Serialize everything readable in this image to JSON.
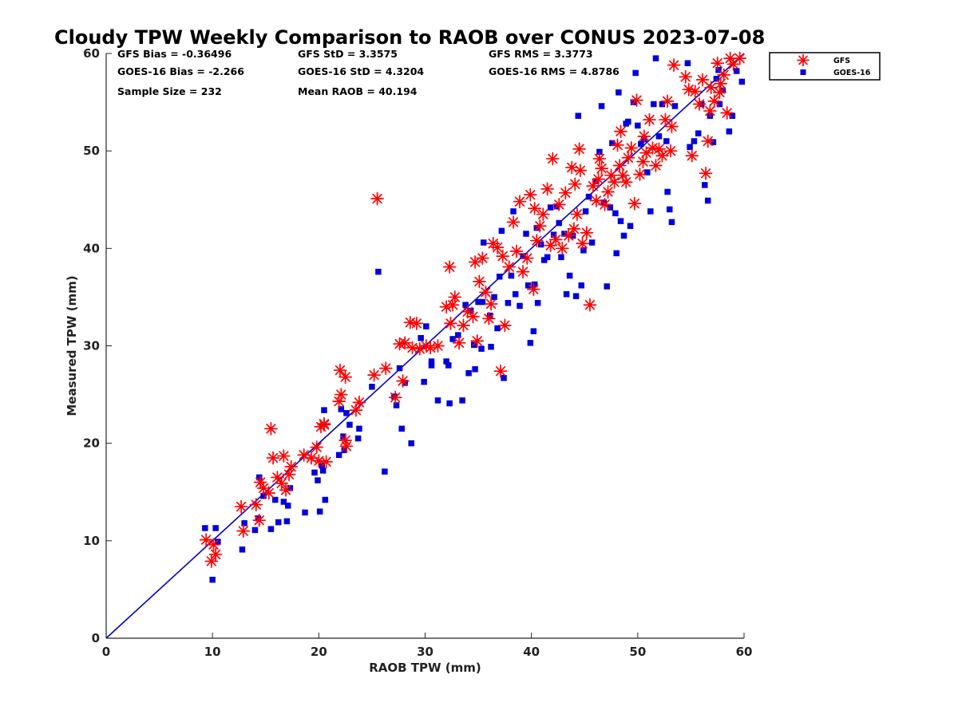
{
  "chart_data": {
    "type": "scatter",
    "title": "Cloudy TPW Weekly Comparison to RAOB over CONUS 2023-07-08",
    "xlabel": "RAOB TPW (mm)",
    "ylabel": "Measured TPW (mm)",
    "xlim": [
      0,
      60
    ],
    "ylim": [
      0,
      60
    ],
    "xticks": [
      "0",
      "10",
      "20",
      "30",
      "40",
      "50",
      "60"
    ],
    "yticks": [
      "0",
      "10",
      "20",
      "30",
      "40",
      "50",
      "60"
    ],
    "grid": false,
    "legend_position": "outside-top-right",
    "reference_line": {
      "from": [
        0,
        0
      ],
      "to": [
        60,
        60
      ],
      "color": "#0000cc"
    },
    "stats": {
      "gfs_bias": "GFS Bias = -0.36496",
      "goes_bias": "GOES-16 Bias = -2.266",
      "sample_size": "Sample Size = 232",
      "gfs_std": "GFS StD = 3.3575",
      "goes_std": "GOES-16 StD = 4.3204",
      "mean_raob": "Mean RAOB = 40.194",
      "gfs_rms": "GFS RMS = 3.3773",
      "goes_rms": "GOES-16 RMS = 4.8786"
    },
    "series": [
      {
        "name": "GFS",
        "marker": "asterisk",
        "color": "#ff0000",
        "points": [
          [
            9.4,
            10.1
          ],
          [
            9.9,
            7.9
          ],
          [
            10.3,
            8.6
          ],
          [
            10.1,
            9.6
          ],
          [
            12.7,
            13.5
          ],
          [
            12.9,
            11.0
          ],
          [
            14.1,
            13.7
          ],
          [
            14.4,
            12.1
          ],
          [
            14.5,
            16.0
          ],
          [
            14.8,
            15.4
          ],
          [
            15.3,
            14.9
          ],
          [
            15.5,
            21.5
          ],
          [
            15.7,
            18.5
          ],
          [
            16.1,
            16.5
          ],
          [
            16.5,
            15.9
          ],
          [
            16.7,
            18.7
          ],
          [
            16.9,
            15.2
          ],
          [
            17.2,
            16.8
          ],
          [
            17.4,
            17.6
          ],
          [
            18.6,
            18.8
          ],
          [
            19.3,
            18.5
          ],
          [
            19.8,
            19.6
          ],
          [
            20.0,
            18.2
          ],
          [
            20.2,
            21.7
          ],
          [
            20.5,
            21.9
          ],
          [
            20.7,
            18.1
          ],
          [
            20.5,
            22.0
          ],
          [
            21.9,
            24.3
          ],
          [
            22.1,
            25.0
          ],
          [
            22.0,
            27.5
          ],
          [
            22.5,
            26.8
          ],
          [
            22.6,
            19.7
          ],
          [
            22.5,
            20.3
          ],
          [
            23.5,
            23.4
          ],
          [
            23.8,
            24.2
          ],
          [
            25.2,
            27.0
          ],
          [
            25.5,
            45.1
          ],
          [
            26.3,
            27.7
          ],
          [
            27.2,
            24.7
          ],
          [
            27.6,
            30.2
          ],
          [
            27.9,
            26.4
          ],
          [
            28.1,
            30.3
          ],
          [
            28.6,
            32.4
          ],
          [
            28.8,
            29.8
          ],
          [
            29.2,
            32.3
          ],
          [
            29.5,
            29.7
          ],
          [
            30.1,
            30.0
          ],
          [
            30.5,
            29.8
          ],
          [
            31.2,
            30.0
          ],
          [
            32.0,
            34.0
          ],
          [
            32.3,
            38.1
          ],
          [
            32.6,
            34.2
          ],
          [
            32.8,
            35.0
          ],
          [
            32.4,
            32.3
          ],
          [
            33.2,
            30.3
          ],
          [
            33.6,
            32.1
          ],
          [
            34.0,
            33.5
          ],
          [
            34.5,
            33.0
          ],
          [
            34.9,
            30.5
          ],
          [
            34.7,
            38.6
          ],
          [
            35.1,
            36.6
          ],
          [
            35.4,
            39.0
          ],
          [
            35.7,
            35.5
          ],
          [
            36.0,
            32.8
          ],
          [
            36.2,
            34.3
          ],
          [
            36.4,
            40.5
          ],
          [
            36.8,
            40.1
          ],
          [
            37.1,
            27.4
          ],
          [
            37.5,
            32.1
          ],
          [
            37.3,
            39.2
          ],
          [
            37.9,
            38.1
          ],
          [
            38.3,
            42.7
          ],
          [
            38.6,
            39.7
          ],
          [
            38.9,
            44.8
          ],
          [
            39.2,
            37.6
          ],
          [
            39.6,
            39.0
          ],
          [
            39.9,
            45.5
          ],
          [
            40.2,
            35.8
          ],
          [
            40.5,
            40.8
          ],
          [
            40.3,
            44.1
          ],
          [
            40.8,
            42.3
          ],
          [
            41.1,
            43.5
          ],
          [
            41.5,
            46.1
          ],
          [
            41.8,
            40.3
          ],
          [
            42.0,
            49.2
          ],
          [
            42.3,
            40.9
          ],
          [
            42.6,
            44.5
          ],
          [
            42.9,
            40.0
          ],
          [
            43.2,
            45.7
          ],
          [
            43.5,
            41.3
          ],
          [
            43.8,
            48.3
          ],
          [
            44.0,
            42.0
          ],
          [
            44.3,
            43.5
          ],
          [
            44.5,
            50.2
          ],
          [
            44.8,
            40.5
          ],
          [
            44.6,
            48.0
          ],
          [
            45.2,
            41.6
          ],
          [
            45.5,
            34.2
          ],
          [
            45.8,
            46.4
          ],
          [
            46.1,
            44.9
          ],
          [
            46.3,
            47.1
          ],
          [
            46.6,
            48.2
          ],
          [
            46.9,
            44.5
          ],
          [
            47.2,
            45.8
          ],
          [
            47.5,
            47.5
          ],
          [
            47.8,
            46.8
          ],
          [
            48.1,
            50.6
          ],
          [
            48.3,
            48.5
          ],
          [
            48.6,
            47.5
          ],
          [
            48.9,
            46.8
          ],
          [
            49.1,
            49.3
          ],
          [
            49.4,
            50.3
          ],
          [
            49.7,
            44.6
          ],
          [
            49.9,
            55.2
          ],
          [
            50.2,
            47.6
          ],
          [
            50.5,
            48.9
          ],
          [
            50.8,
            49.8
          ],
          [
            51.1,
            53.2
          ],
          [
            51.4,
            50.3
          ],
          [
            51.7,
            48.5
          ],
          [
            52.0,
            50.2
          ],
          [
            52.3,
            49.5
          ],
          [
            52.6,
            53.2
          ],
          [
            52.8,
            55.1
          ],
          [
            53.1,
            50.0
          ],
          [
            53.4,
            58.8
          ],
          [
            54.8,
            56.3
          ],
          [
            55.1,
            49.5
          ],
          [
            55.4,
            56.1
          ],
          [
            55.8,
            54.8
          ],
          [
            56.1,
            57.3
          ],
          [
            56.4,
            47.7
          ],
          [
            56.6,
            51.0
          ],
          [
            56.9,
            56.5
          ],
          [
            57.2,
            55.1
          ],
          [
            57.5,
            59.0
          ],
          [
            57.8,
            56.9
          ],
          [
            58.1,
            57.8
          ],
          [
            58.4,
            53.9
          ],
          [
            58.7,
            59.5
          ],
          [
            59.0,
            58.9
          ],
          [
            59.6,
            59.5
          ],
          [
            54.5,
            57.6
          ],
          [
            56.8,
            54.1
          ],
          [
            57.7,
            56.0
          ],
          [
            53.2,
            52.5
          ],
          [
            50.6,
            51.5
          ],
          [
            48.4,
            52.0
          ],
          [
            46.4,
            49.2
          ],
          [
            44.1,
            46.6
          ]
        ]
      },
      {
        "name": "GOES-16",
        "marker": "square",
        "color": "#0000dd",
        "points": [
          [
            9.3,
            11.3
          ],
          [
            10.0,
            6.0
          ],
          [
            10.3,
            11.3
          ],
          [
            10.5,
            9.9
          ],
          [
            12.8,
            9.1
          ],
          [
            13.0,
            11.8
          ],
          [
            14.0,
            11.1
          ],
          [
            14.3,
            12.3
          ],
          [
            14.4,
            16.5
          ],
          [
            14.8,
            14.6
          ],
          [
            15.5,
            11.2
          ],
          [
            15.9,
            14.2
          ],
          [
            16.2,
            11.9
          ],
          [
            16.7,
            14.0
          ],
          [
            17.0,
            12.0
          ],
          [
            17.1,
            13.6
          ],
          [
            17.3,
            15.4
          ],
          [
            18.7,
            12.9
          ],
          [
            19.6,
            17.0
          ],
          [
            19.9,
            16.2
          ],
          [
            20.1,
            13.0
          ],
          [
            20.3,
            17.7
          ],
          [
            20.5,
            23.4
          ],
          [
            20.6,
            14.2
          ],
          [
            20.4,
            17.2
          ],
          [
            21.9,
            18.8
          ],
          [
            22.1,
            23.5
          ],
          [
            22.3,
            20.7
          ],
          [
            22.4,
            19.3
          ],
          [
            22.6,
            23.1
          ],
          [
            22.9,
            21.9
          ],
          [
            23.7,
            20.5
          ],
          [
            23.8,
            21.5
          ],
          [
            25.0,
            25.8
          ],
          [
            25.6,
            37.6
          ],
          [
            26.2,
            17.1
          ],
          [
            27.1,
            24.8
          ],
          [
            27.3,
            23.9
          ],
          [
            27.6,
            27.7
          ],
          [
            27.8,
            21.5
          ],
          [
            28.1,
            26.2
          ],
          [
            28.7,
            20.0
          ],
          [
            29.6,
            30.8
          ],
          [
            29.9,
            26.3
          ],
          [
            30.1,
            32.0
          ],
          [
            30.6,
            28.4
          ],
          [
            30.6,
            28.0
          ],
          [
            31.2,
            24.4
          ],
          [
            32.0,
            28.4
          ],
          [
            32.2,
            28.0
          ],
          [
            32.3,
            24.1
          ],
          [
            32.6,
            30.7
          ],
          [
            33.1,
            31.1
          ],
          [
            33.5,
            24.4
          ],
          [
            33.8,
            34.2
          ],
          [
            34.1,
            27.2
          ],
          [
            34.3,
            33.6
          ],
          [
            34.6,
            30.1
          ],
          [
            34.7,
            27.6
          ],
          [
            35.0,
            34.5
          ],
          [
            35.3,
            29.7
          ],
          [
            35.4,
            34.5
          ],
          [
            35.5,
            40.6
          ],
          [
            36.1,
            33.1
          ],
          [
            36.2,
            29.9
          ],
          [
            36.5,
            35.0
          ],
          [
            36.8,
            31.8
          ],
          [
            37.0,
            37.1
          ],
          [
            37.2,
            41.8
          ],
          [
            37.4,
            26.7
          ],
          [
            37.8,
            34.4
          ],
          [
            38.1,
            37.2
          ],
          [
            38.3,
            43.8
          ],
          [
            38.5,
            35.3
          ],
          [
            38.9,
            34.1
          ],
          [
            39.2,
            39.2
          ],
          [
            39.5,
            41.5
          ],
          [
            39.7,
            36.2
          ],
          [
            39.9,
            30.3
          ],
          [
            40.2,
            31.5
          ],
          [
            40.3,
            36.3
          ],
          [
            40.5,
            42.1
          ],
          [
            40.6,
            34.4
          ],
          [
            40.9,
            40.4
          ],
          [
            41.2,
            38.8
          ],
          [
            41.5,
            39.1
          ],
          [
            41.8,
            44.2
          ],
          [
            42.1,
            41.4
          ],
          [
            42.4,
            44.3
          ],
          [
            42.6,
            42.6
          ],
          [
            42.8,
            39.1
          ],
          [
            43.1,
            41.5
          ],
          [
            43.3,
            35.3
          ],
          [
            43.6,
            37.2
          ],
          [
            43.9,
            41.3
          ],
          [
            44.2,
            35.1
          ],
          [
            44.4,
            53.6
          ],
          [
            44.7,
            36.2
          ],
          [
            44.9,
            39.8
          ],
          [
            45.1,
            43.8
          ],
          [
            45.4,
            45.3
          ],
          [
            45.7,
            40.6
          ],
          [
            46.1,
            46.9
          ],
          [
            46.4,
            49.9
          ],
          [
            46.6,
            54.6
          ],
          [
            46.8,
            44.7
          ],
          [
            47.1,
            36.1
          ],
          [
            47.4,
            44.2
          ],
          [
            47.6,
            50.8
          ],
          [
            47.9,
            43.6
          ],
          [
            48.0,
            39.5
          ],
          [
            48.2,
            56.0
          ],
          [
            48.4,
            42.8
          ],
          [
            48.7,
            41.3
          ],
          [
            48.9,
            52.8
          ],
          [
            49.1,
            53.0
          ],
          [
            49.3,
            42.3
          ],
          [
            49.6,
            55.0
          ],
          [
            49.8,
            58.0
          ],
          [
            50.0,
            52.6
          ],
          [
            50.3,
            50.7
          ],
          [
            50.6,
            51.2
          ],
          [
            50.9,
            47.8
          ],
          [
            51.2,
            43.8
          ],
          [
            51.5,
            54.8
          ],
          [
            51.7,
            59.5
          ],
          [
            52.0,
            51.5
          ],
          [
            52.3,
            54.8
          ],
          [
            52.7,
            51.0
          ],
          [
            52.8,
            45.8
          ],
          [
            53.0,
            44.0
          ],
          [
            53.2,
            42.7
          ],
          [
            53.5,
            54.6
          ],
          [
            54.7,
            59.0
          ],
          [
            54.9,
            50.4
          ],
          [
            55.3,
            51.0
          ],
          [
            55.7,
            51.8
          ],
          [
            56.0,
            54.8
          ],
          [
            56.3,
            46.5
          ],
          [
            56.6,
            44.9
          ],
          [
            56.8,
            53.6
          ],
          [
            57.1,
            50.9
          ],
          [
            57.4,
            57.4
          ],
          [
            57.7,
            54.8
          ],
          [
            58.0,
            56.2
          ],
          [
            58.6,
            52.0
          ],
          [
            58.9,
            53.6
          ],
          [
            59.3,
            58.2
          ],
          [
            59.8,
            57.1
          ],
          [
            57.6,
            58.3
          ]
        ]
      }
    ]
  }
}
